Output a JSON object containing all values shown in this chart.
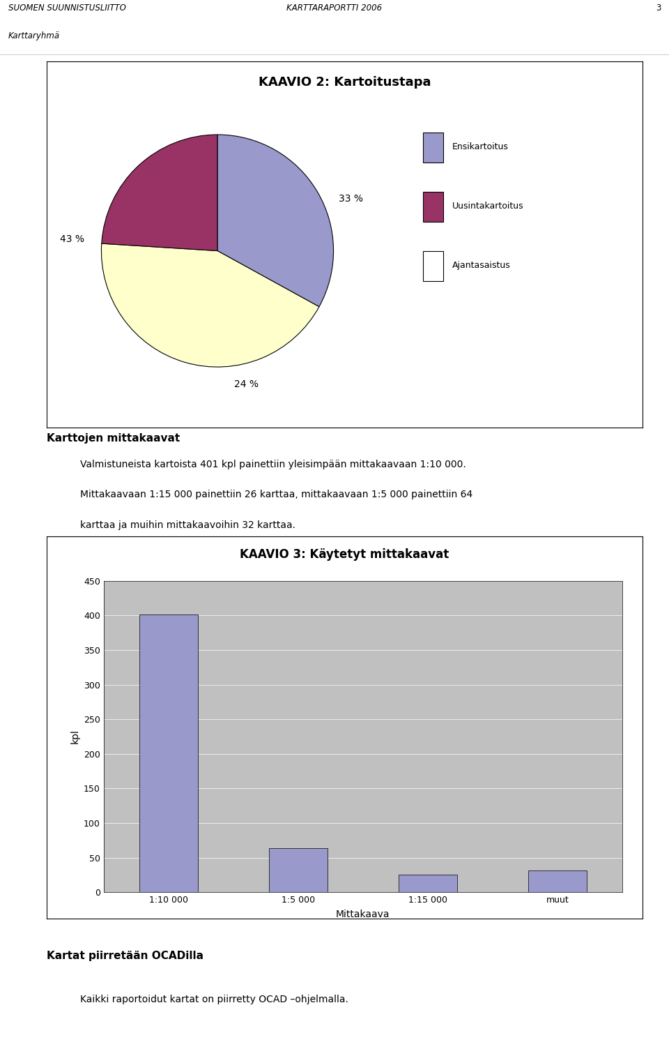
{
  "page_title_left1": "SUOMEN SUUNNISTUSLIITTO",
  "page_title_left2": "Karttaryhmä",
  "page_title_center": "KARTTARAPORTTI 2006",
  "page_number": "3",
  "pie_title": "KAAVIO 2: Kartoitustapa",
  "pie_values": [
    33,
    43,
    24
  ],
  "pie_labels": [
    "33 %",
    "43 %",
    "24 %"
  ],
  "pie_colors": [
    "#9999cc",
    "#ffffcc",
    "#993366"
  ],
  "pie_legend_labels": [
    "Ensikartoitus",
    "Uusintakartoitus",
    "Ajantasaistus"
  ],
  "pie_legend_colors": [
    "#9999cc",
    "#993366",
    "#ffffff"
  ],
  "text_section_title": "Karttojen mittakaavat",
  "text_body": "Valmistuneista kartoista 401 kpl painettiin yleisimpään mittakaavaan 1:10 000.\nMittakaavaan 1:15 000 painettiin 26 karttaa, mittakaavaan 1:5 000 painettiin 64\nkarttaa ja muihin mittakaavoihin 32 karttaa.",
  "bar_title": "KAAVIO 3: Käytetyt mittakaavat",
  "bar_categories": [
    "1:10 000",
    "1:5 000",
    "1:15 000",
    "muut"
  ],
  "bar_values": [
    401,
    64,
    26,
    32
  ],
  "bar_color": "#9999cc",
  "bar_xlabel": "Mittakaava",
  "bar_ylabel": "kpl",
  "bar_ylim": [
    0,
    450
  ],
  "bar_yticks": [
    0,
    50,
    100,
    150,
    200,
    250,
    300,
    350,
    400,
    450
  ],
  "bar_bg_color": "#c0c0c0",
  "footer_title": "Kartat piirretään OCADilla",
  "footer_text": "Kaikki raportoidut kartat on piirretty OCAD –ohjelmalla."
}
